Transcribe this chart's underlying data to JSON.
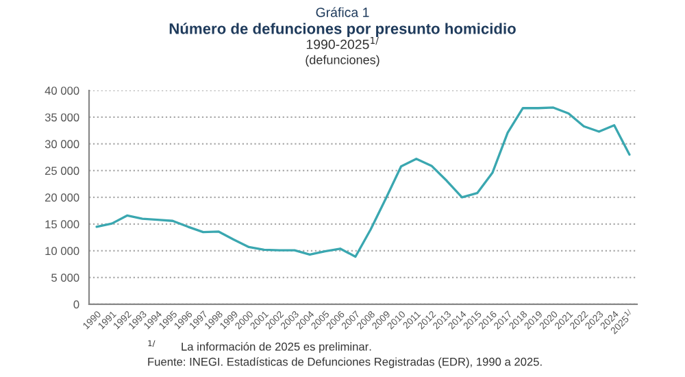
{
  "chart_data": {
    "type": "line",
    "title": "Gráfica 1",
    "subtitle": "Número de defunciones por presunto homicidio",
    "annotations": [
      "1990-2025$^{1/}$",
      "(defunciones)",
      "$^{1/}$        La información de 2025 es preliminar.",
      "Fuente: INEGI. Estadísticas de Defunciones Registradas (EDR), 1990 a 2025."
    ],
    "categories": [
      "1990",
      "1991",
      "1992",
      "1993",
      "1994",
      "1995",
      "1996",
      "1997",
      "1998",
      "1999",
      "2000",
      "2001",
      "2002",
      "2003",
      "2004",
      "2005",
      "2006",
      "2007",
      "2008",
      "2009",
      "2010",
      "2011",
      "2012",
      "2013",
      "2014",
      "2015",
      "2016",
      "2017",
      "2018",
      "2019",
      "2020",
      "2021",
      "2022",
      "2023",
      "2024",
      "2025$^{1/}$"
    ],
    "series": [
      {
        "color": "#3aa7b0",
        "values": [
          14500,
          15100,
          16600,
          16000,
          15800,
          15600,
          14500,
          13500,
          13600,
          12100,
          10700,
          10200,
          10100,
          10100,
          9300,
          9900,
          10400,
          8900,
          14000,
          19800,
          25800,
          27200,
          25900,
          23100,
          20000,
          20800,
          24600,
          32100,
          36700,
          36700,
          36800,
          35700,
          33300,
          32300,
          33500,
          28000
        ]
      }
    ],
    "ylim": [
      0,
      40000
    ],
    "yticks": [
      {
        "value": 0,
        "label": "0"
      },
      {
        "value": 5000,
        "label": "5 000"
      },
      {
        "value": 10000,
        "label": "10 000"
      },
      {
        "value": 15000,
        "label": "15 000"
      },
      {
        "value": 20000,
        "label": "20 000"
      },
      {
        "value": 25000,
        "label": "25 000"
      },
      {
        "value": 30000,
        "label": "30 000"
      },
      {
        "value": 35000,
        "label": "35 000"
      },
      {
        "value": 40000,
        "label": "40 000"
      }
    ],
    "grid": "y",
    "legend": false,
    "marker": "none",
    "line_style": "solid"
  }
}
